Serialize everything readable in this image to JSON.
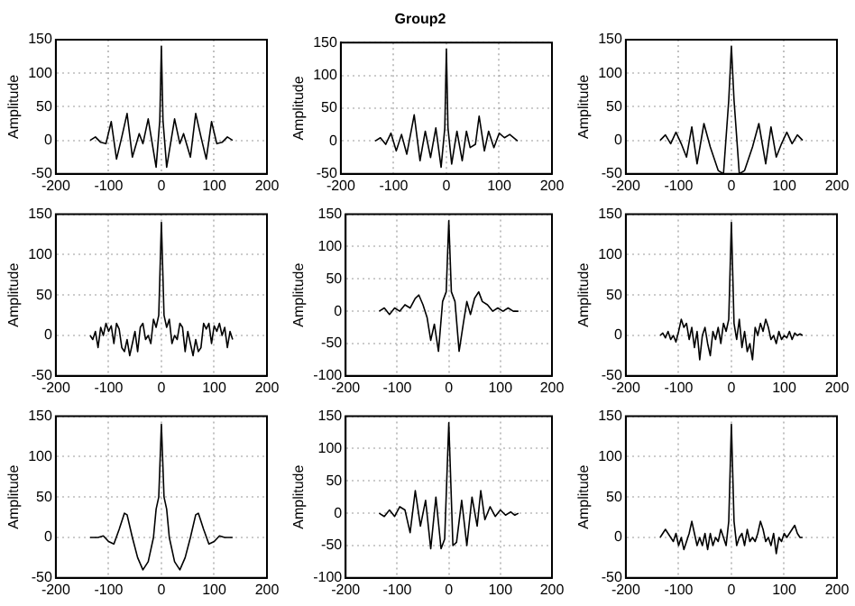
{
  "chart_data": [
    {
      "type": "line",
      "ylabel": "Amplitude",
      "xlim": [
        -200,
        200
      ],
      "xticks": [
        -200,
        -100,
        0,
        100,
        200
      ],
      "ylim": [
        -50,
        150
      ],
      "yticks": [
        -50,
        0,
        50,
        100,
        150
      ],
      "grid": true,
      "series": [
        {
          "color": "#000000",
          "x": [
            -135,
            -125,
            -115,
            -105,
            -95,
            -85,
            -75,
            -65,
            -55,
            -42,
            -35,
            -25,
            -10,
            -3,
            0,
            3,
            10,
            25,
            35,
            42,
            55,
            65,
            75,
            85,
            95,
            105,
            115,
            125,
            135
          ],
          "values": [
            0,
            5,
            -3,
            -5,
            28,
            -28,
            5,
            40,
            -25,
            10,
            -5,
            32,
            -40,
            30,
            140,
            30,
            -40,
            32,
            -5,
            10,
            -25,
            40,
            5,
            -28,
            28,
            -5,
            -3,
            5,
            0
          ]
        }
      ]
    },
    {
      "type": "line",
      "title": "Group2",
      "ylabel": "Amplitude",
      "xlim": [
        -200,
        200
      ],
      "xticks": [
        -200,
        -100,
        0,
        100,
        200
      ],
      "ylim": [
        -50,
        150
      ],
      "yticks": [
        -50,
        0,
        50,
        100,
        150
      ],
      "grid": true,
      "series": [
        {
          "color": "#000000",
          "x": [
            -135,
            -125,
            -115,
            -105,
            -95,
            -85,
            -75,
            -61,
            -50,
            -40,
            -30,
            -20,
            -10,
            -3,
            0,
            3,
            10,
            20,
            30,
            38,
            45,
            55,
            62,
            72,
            80,
            90,
            100,
            110,
            120,
            135
          ],
          "values": [
            0,
            5,
            -5,
            12,
            -15,
            10,
            -20,
            40,
            -30,
            15,
            -25,
            20,
            -40,
            20,
            140,
            20,
            -35,
            15,
            -30,
            15,
            -10,
            -5,
            38,
            -15,
            15,
            -10,
            12,
            5,
            10,
            0
          ]
        }
      ]
    },
    {
      "type": "line",
      "ylabel": "Amplitude",
      "xlim": [
        -200,
        200
      ],
      "xticks": [
        -200,
        -100,
        0,
        100,
        200
      ],
      "ylim": [
        -50,
        150
      ],
      "yticks": [
        -50,
        0,
        50,
        100,
        150
      ],
      "grid": true,
      "series": [
        {
          "color": "#000000",
          "x": [
            -135,
            -125,
            -115,
            -105,
            -95,
            -85,
            -75,
            -65,
            -52,
            -40,
            -25,
            -15,
            -5,
            0,
            5,
            15,
            25,
            40,
            52,
            65,
            75,
            85,
            95,
            105,
            115,
            125,
            135
          ],
          "values": [
            0,
            8,
            -5,
            12,
            -5,
            -25,
            20,
            -35,
            25,
            -10,
            -45,
            -50,
            60,
            140,
            60,
            -50,
            -45,
            -10,
            25,
            -35,
            20,
            -25,
            -5,
            12,
            -5,
            8,
            0
          ]
        }
      ]
    },
    {
      "type": "line",
      "ylabel": "Amplitude",
      "xlim": [
        -200,
        200
      ],
      "xticks": [
        -200,
        -100,
        0,
        100,
        200
      ],
      "ylim": [
        -50,
        150
      ],
      "yticks": [
        -50,
        0,
        50,
        100,
        150
      ],
      "grid": true,
      "series": [
        {
          "color": "#000000",
          "x": [
            -135,
            -130,
            -125,
            -120,
            -115,
            -110,
            -105,
            -100,
            -95,
            -90,
            -85,
            -80,
            -75,
            -70,
            -65,
            -60,
            -55,
            -50,
            -45,
            -40,
            -35,
            -30,
            -25,
            -20,
            -15,
            -10,
            -5,
            0,
            5,
            10,
            15,
            20,
            25,
            30,
            35,
            40,
            45,
            50,
            55,
            60,
            65,
            70,
            75,
            80,
            85,
            90,
            95,
            100,
            105,
            110,
            115,
            120,
            125,
            130,
            135
          ],
          "values": [
            0,
            -5,
            5,
            -15,
            10,
            0,
            15,
            5,
            12,
            -10,
            15,
            8,
            -15,
            -20,
            -5,
            -25,
            -10,
            5,
            -20,
            10,
            15,
            -5,
            0,
            -10,
            20,
            10,
            25,
            140,
            25,
            10,
            20,
            -10,
            0,
            -5,
            15,
            10,
            -20,
            5,
            -10,
            -25,
            -5,
            -20,
            -15,
            15,
            8,
            15,
            -10,
            12,
            5,
            15,
            0,
            10,
            -15,
            5,
            -5
          ]
        }
      ]
    },
    {
      "type": "line",
      "ylabel": "Amplitude",
      "xlim": [
        -200,
        200
      ],
      "xticks": [
        -200,
        -100,
        0,
        100,
        200
      ],
      "ylim": [
        -100,
        150
      ],
      "yticks": [
        -100,
        -50,
        0,
        50,
        100,
        150
      ],
      "grid": true,
      "series": [
        {
          "color": "#000000",
          "x": [
            -135,
            -125,
            -115,
            -105,
            -95,
            -85,
            -75,
            -65,
            -58,
            -50,
            -42,
            -35,
            -28,
            -20,
            -12,
            -5,
            0,
            5,
            12,
            20,
            28,
            35,
            42,
            50,
            58,
            65,
            75,
            85,
            95,
            105,
            115,
            125,
            135
          ],
          "values": [
            0,
            5,
            -5,
            5,
            0,
            10,
            5,
            20,
            25,
            10,
            -10,
            -45,
            -20,
            -62,
            15,
            30,
            140,
            30,
            15,
            -62,
            -20,
            15,
            -5,
            20,
            30,
            15,
            10,
            0,
            5,
            0,
            5,
            0,
            0
          ]
        }
      ]
    },
    {
      "type": "line",
      "ylabel": "Amplitude",
      "xlim": [
        -200,
        200
      ],
      "xticks": [
        -200,
        -100,
        0,
        100,
        200
      ],
      "ylim": [
        -50,
        150
      ],
      "yticks": [
        -50,
        0,
        50,
        100,
        150
      ],
      "grid": true,
      "series": [
        {
          "color": "#000000",
          "x": [
            -135,
            -130,
            -125,
            -120,
            -115,
            -110,
            -105,
            -100,
            -95,
            -90,
            -85,
            -80,
            -75,
            -70,
            -65,
            -60,
            -55,
            -50,
            -45,
            -40,
            -35,
            -30,
            -25,
            -20,
            -15,
            -10,
            -5,
            0,
            5,
            10,
            15,
            20,
            25,
            30,
            35,
            40,
            45,
            50,
            55,
            60,
            65,
            70,
            75,
            80,
            85,
            90,
            95,
            100,
            105,
            110,
            115,
            120,
            125,
            130,
            135
          ],
          "values": [
            0,
            3,
            -3,
            5,
            -5,
            0,
            -8,
            5,
            20,
            10,
            15,
            -5,
            10,
            -15,
            5,
            -30,
            0,
            10,
            -10,
            -25,
            5,
            -5,
            10,
            -10,
            15,
            5,
            20,
            140,
            15,
            -5,
            20,
            -15,
            5,
            -20,
            -10,
            -30,
            10,
            0,
            15,
            5,
            20,
            10,
            -5,
            0,
            -10,
            5,
            -5,
            0,
            -3,
            5,
            -5,
            3,
            0,
            2,
            0
          ]
        }
      ]
    },
    {
      "type": "line",
      "ylabel": "Amplitude",
      "xlim": [
        -200,
        200
      ],
      "xticks": [
        -200,
        -100,
        0,
        100,
        200
      ],
      "ylim": [
        -50,
        150
      ],
      "yticks": [
        -50,
        0,
        50,
        100,
        150
      ],
      "grid": true,
      "series": [
        {
          "color": "#000000",
          "x": [
            -135,
            -120,
            -110,
            -100,
            -90,
            -80,
            -70,
            -65,
            -55,
            -45,
            -35,
            -25,
            -15,
            -10,
            -5,
            0,
            5,
            10,
            15,
            25,
            35,
            45,
            55,
            65,
            70,
            80,
            90,
            100,
            110,
            120,
            135
          ],
          "values": [
            0,
            0,
            2,
            -5,
            -8,
            10,
            30,
            28,
            0,
            -25,
            -40,
            -30,
            0,
            35,
            50,
            140,
            50,
            35,
            0,
            -30,
            -40,
            -25,
            0,
            28,
            30,
            10,
            -8,
            -5,
            2,
            0,
            0
          ]
        }
      ]
    },
    {
      "type": "line",
      "ylabel": "Amplitude",
      "xlim": [
        -200,
        200
      ],
      "xticks": [
        -200,
        -100,
        0,
        100,
        200
      ],
      "ylim": [
        -100,
        150
      ],
      "yticks": [
        -100,
        -50,
        0,
        50,
        100,
        150
      ],
      "grid": true,
      "series": [
        {
          "color": "#000000",
          "x": [
            -135,
            -125,
            -115,
            -105,
            -95,
            -85,
            -75,
            -65,
            -55,
            -45,
            -35,
            -25,
            -15,
            -8,
            0,
            8,
            15,
            25,
            35,
            45,
            55,
            62,
            70,
            80,
            90,
            100,
            110,
            120,
            128,
            135
          ],
          "values": [
            0,
            -5,
            5,
            -5,
            10,
            5,
            -30,
            35,
            -20,
            20,
            -55,
            25,
            -55,
            -40,
            140,
            -50,
            -45,
            20,
            -50,
            25,
            -20,
            35,
            -10,
            10,
            -5,
            5,
            -3,
            2,
            -3,
            0
          ]
        }
      ]
    },
    {
      "type": "line",
      "ylabel": "Amplitude",
      "xlim": [
        -200,
        200
      ],
      "xticks": [
        -200,
        -100,
        0,
        100,
        200
      ],
      "ylim": [
        -50,
        150
      ],
      "yticks": [
        -50,
        0,
        50,
        100,
        150
      ],
      "grid": true,
      "series": [
        {
          "color": "#000000",
          "x": [
            -135,
            -130,
            -125,
            -120,
            -115,
            -110,
            -105,
            -100,
            -95,
            -90,
            -85,
            -80,
            -75,
            -70,
            -65,
            -60,
            -55,
            -50,
            -45,
            -40,
            -35,
            -30,
            -25,
            -20,
            -15,
            -10,
            -5,
            0,
            5,
            10,
            15,
            20,
            25,
            30,
            35,
            40,
            45,
            50,
            55,
            60,
            65,
            70,
            75,
            80,
            85,
            90,
            95,
            100,
            105,
            110,
            115,
            120,
            125,
            130,
            135
          ],
          "values": [
            0,
            5,
            10,
            5,
            0,
            -5,
            5,
            -10,
            0,
            -15,
            -5,
            5,
            20,
            5,
            -10,
            0,
            -10,
            5,
            -15,
            5,
            -10,
            0,
            -5,
            10,
            0,
            -10,
            20,
            140,
            20,
            -10,
            0,
            5,
            -10,
            10,
            -5,
            0,
            -5,
            5,
            20,
            10,
            -5,
            0,
            -10,
            5,
            -20,
            0,
            -5,
            5,
            0,
            5,
            10,
            15,
            5,
            0,
            0
          ]
        }
      ]
    }
  ]
}
